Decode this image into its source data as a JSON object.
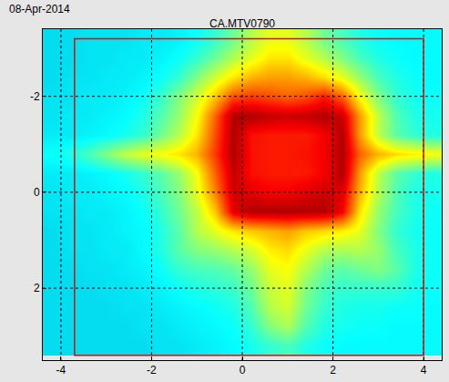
{
  "chart_data": {
    "type": "heatmap",
    "title": "CA.MTV0790",
    "annotation": "08-Apr-2014",
    "x": [
      -4.2,
      -3.8,
      -3.4,
      -3.0,
      -2.6,
      -2.2,
      -1.8,
      -1.4,
      -1.0,
      -0.6,
      -0.2,
      0.2,
      0.6,
      1.0,
      1.4,
      1.8,
      2.2,
      2.6,
      3.0,
      3.4,
      3.8,
      4.2
    ],
    "y": [
      -3.2,
      -2.8,
      -2.4,
      -2.0,
      -1.6,
      -1.2,
      -0.8,
      -0.4,
      0.0,
      0.4,
      0.8,
      1.2,
      1.6,
      2.0,
      2.4,
      2.8,
      3.2
    ],
    "z": [
      [
        0.33,
        0.33,
        0.34,
        0.34,
        0.34,
        0.35,
        0.35,
        0.36,
        0.38,
        0.42,
        0.48,
        0.55,
        0.6,
        0.6,
        0.55,
        0.48,
        0.44,
        0.4,
        0.38,
        0.37,
        0.37,
        0.37
      ],
      [
        0.33,
        0.33,
        0.34,
        0.34,
        0.35,
        0.35,
        0.36,
        0.38,
        0.42,
        0.48,
        0.55,
        0.6,
        0.65,
        0.65,
        0.6,
        0.55,
        0.5,
        0.44,
        0.4,
        0.38,
        0.37,
        0.37
      ],
      [
        0.33,
        0.34,
        0.34,
        0.35,
        0.35,
        0.36,
        0.38,
        0.42,
        0.5,
        0.58,
        0.65,
        0.7,
        0.72,
        0.72,
        0.7,
        0.66,
        0.6,
        0.52,
        0.44,
        0.4,
        0.38,
        0.37
      ],
      [
        0.34,
        0.34,
        0.35,
        0.35,
        0.36,
        0.38,
        0.42,
        0.5,
        0.58,
        0.68,
        0.8,
        0.82,
        0.8,
        0.78,
        0.8,
        0.85,
        0.78,
        0.62,
        0.5,
        0.42,
        0.39,
        0.38
      ],
      [
        0.34,
        0.35,
        0.35,
        0.36,
        0.37,
        0.4,
        0.45,
        0.52,
        0.62,
        0.78,
        0.95,
        0.95,
        0.93,
        0.92,
        0.93,
        0.95,
        0.92,
        0.72,
        0.56,
        0.45,
        0.4,
        0.39
      ],
      [
        0.35,
        0.35,
        0.36,
        0.37,
        0.39,
        0.42,
        0.48,
        0.55,
        0.65,
        0.8,
        0.95,
        0.86,
        0.85,
        0.85,
        0.85,
        0.88,
        0.95,
        0.72,
        0.56,
        0.46,
        0.42,
        0.4
      ],
      [
        0.38,
        0.4,
        0.44,
        0.5,
        0.56,
        0.6,
        0.62,
        0.65,
        0.7,
        0.82,
        0.95,
        0.86,
        0.85,
        0.85,
        0.86,
        0.88,
        0.95,
        0.78,
        0.7,
        0.66,
        0.64,
        0.62
      ],
      [
        0.35,
        0.35,
        0.36,
        0.37,
        0.39,
        0.42,
        0.46,
        0.52,
        0.62,
        0.78,
        0.93,
        0.86,
        0.85,
        0.85,
        0.85,
        0.88,
        0.95,
        0.72,
        0.56,
        0.46,
        0.42,
        0.4
      ],
      [
        0.34,
        0.35,
        0.35,
        0.36,
        0.37,
        0.4,
        0.44,
        0.5,
        0.6,
        0.75,
        0.92,
        0.9,
        0.88,
        0.88,
        0.9,
        0.92,
        0.9,
        0.7,
        0.55,
        0.45,
        0.4,
        0.39
      ],
      [
        0.34,
        0.34,
        0.35,
        0.35,
        0.36,
        0.38,
        0.42,
        0.48,
        0.56,
        0.68,
        0.9,
        0.95,
        0.95,
        0.95,
        0.95,
        0.95,
        0.88,
        0.65,
        0.52,
        0.44,
        0.4,
        0.38
      ],
      [
        0.33,
        0.34,
        0.34,
        0.35,
        0.36,
        0.37,
        0.4,
        0.46,
        0.55,
        0.6,
        0.65,
        0.68,
        0.7,
        0.72,
        0.68,
        0.66,
        0.64,
        0.6,
        0.5,
        0.42,
        0.39,
        0.38
      ],
      [
        0.33,
        0.34,
        0.34,
        0.35,
        0.35,
        0.37,
        0.4,
        0.46,
        0.5,
        0.52,
        0.55,
        0.58,
        0.64,
        0.66,
        0.6,
        0.55,
        0.54,
        0.55,
        0.52,
        0.44,
        0.4,
        0.38
      ],
      [
        0.33,
        0.33,
        0.34,
        0.34,
        0.35,
        0.36,
        0.38,
        0.42,
        0.44,
        0.45,
        0.47,
        0.52,
        0.6,
        0.62,
        0.55,
        0.48,
        0.46,
        0.48,
        0.5,
        0.46,
        0.4,
        0.38
      ],
      [
        0.33,
        0.33,
        0.33,
        0.34,
        0.34,
        0.35,
        0.36,
        0.38,
        0.4,
        0.41,
        0.43,
        0.48,
        0.57,
        0.6,
        0.5,
        0.44,
        0.42,
        0.42,
        0.42,
        0.42,
        0.39,
        0.38
      ],
      [
        0.33,
        0.33,
        0.33,
        0.33,
        0.34,
        0.34,
        0.35,
        0.36,
        0.37,
        0.38,
        0.4,
        0.45,
        0.55,
        0.58,
        0.48,
        0.42,
        0.4,
        0.39,
        0.39,
        0.38,
        0.38,
        0.37
      ],
      [
        0.33,
        0.33,
        0.33,
        0.33,
        0.33,
        0.34,
        0.34,
        0.35,
        0.36,
        0.37,
        0.38,
        0.42,
        0.5,
        0.54,
        0.45,
        0.4,
        0.39,
        0.38,
        0.38,
        0.37,
        0.37,
        0.37
      ],
      [
        0.33,
        0.33,
        0.33,
        0.33,
        0.33,
        0.33,
        0.34,
        0.34,
        0.35,
        0.36,
        0.37,
        0.39,
        0.42,
        0.44,
        0.4,
        0.38,
        0.37,
        0.37,
        0.37,
        0.37,
        0.37,
        0.37
      ]
    ],
    "zlim": [
      0,
      1
    ],
    "xlim": [
      -4.4,
      4.4
    ],
    "ylim": [
      3.5,
      -3.4
    ],
    "xticks": [
      -4,
      -2,
      0,
      2,
      4
    ],
    "yticks": [
      -2,
      0,
      2
    ],
    "grid": true,
    "rectangle": {
      "x": [
        -3.7,
        4.0
      ],
      "y": [
        -3.2,
        3.4
      ],
      "color": "#d01010"
    }
  }
}
